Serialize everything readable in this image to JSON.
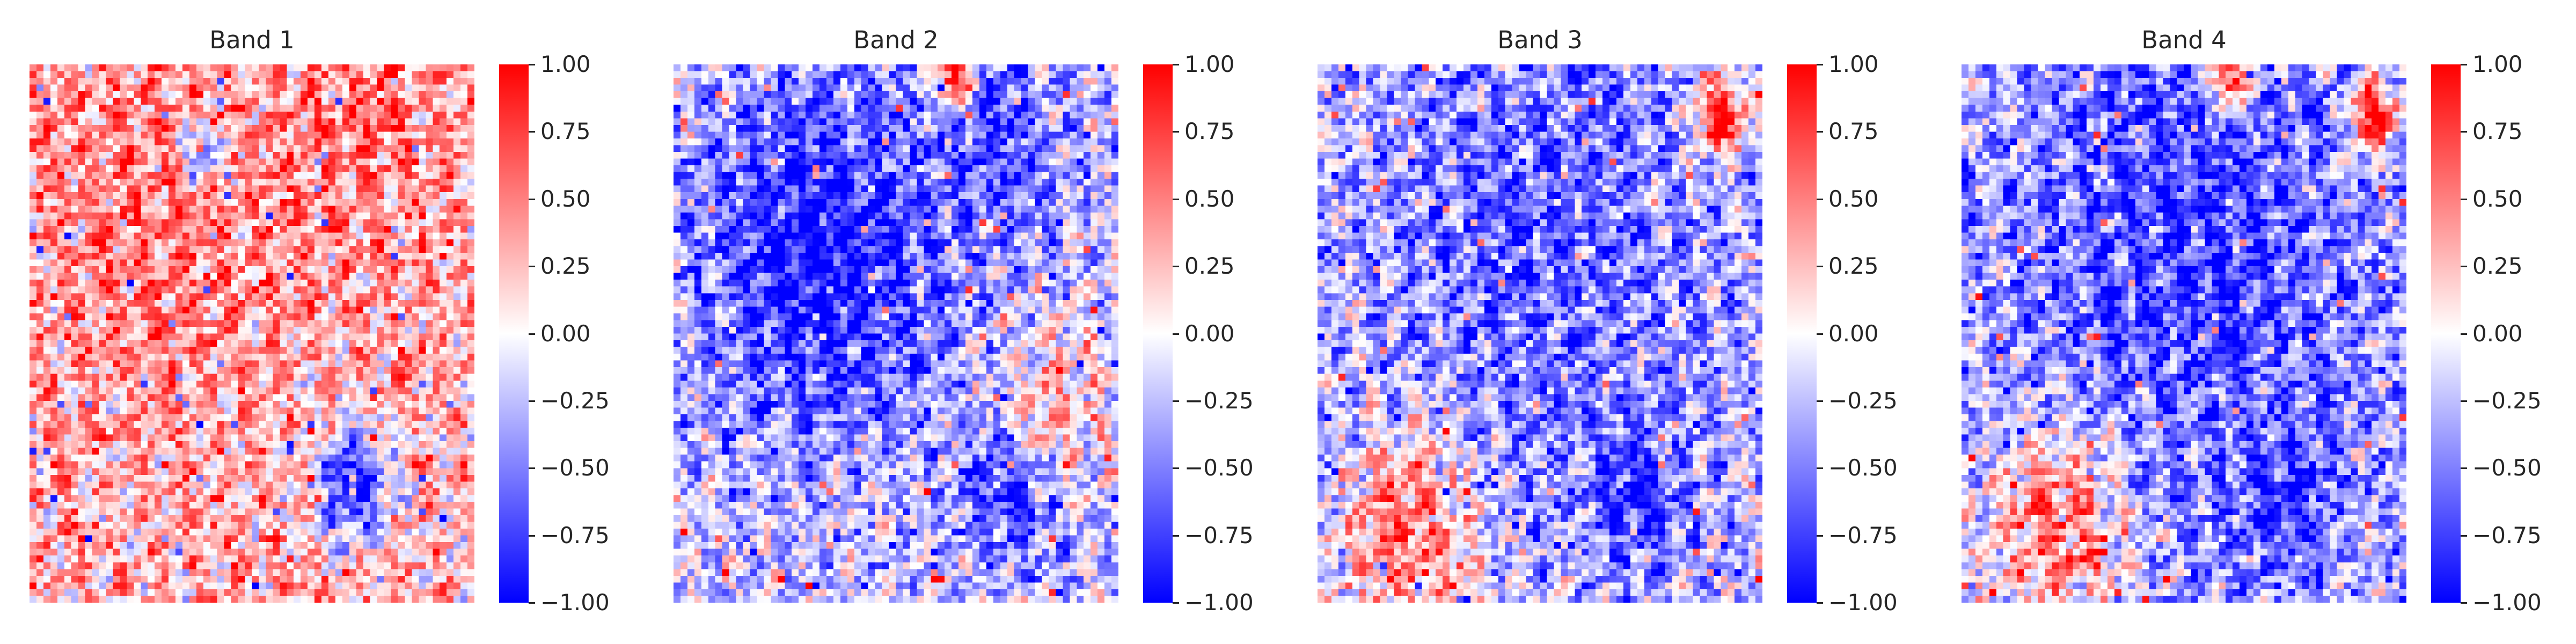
{
  "chart_data": [
    {
      "type": "heatmap",
      "title": "Band 1",
      "colormap": "bwr",
      "vmin": -1.0,
      "vmax": 1.0,
      "colorbar_ticks": [
        1.0,
        0.75,
        0.5,
        0.25,
        0.0,
        -0.25,
        -0.5,
        -0.75,
        -1.0
      ],
      "colorbar_tick_labels": [
        "1.00",
        "0.75",
        "0.50",
        "0.25",
        "0.00",
        "−0.25",
        "−0.50",
        "−0.75",
        "−1.00"
      ],
      "grid_rows": 80,
      "grid_cols": 64,
      "pattern": "mostly light positive (pink) with scattered blue streaks; negative blob near lower-right middle",
      "mean_value": 0.25,
      "features": [
        {
          "cx": 0.3,
          "cy": 0.3,
          "r": 0.2,
          "value": 0.5
        },
        {
          "cx": 0.75,
          "cy": 0.08,
          "r": 0.18,
          "value": 0.5
        },
        {
          "cx": 0.72,
          "cy": 0.78,
          "r": 0.06,
          "value": -0.9
        },
        {
          "cx": 0.38,
          "cy": 0.16,
          "r": 0.03,
          "value": -0.6
        }
      ]
    },
    {
      "type": "heatmap",
      "title": "Band 2",
      "colormap": "bwr",
      "vmin": -1.0,
      "vmax": 1.0,
      "colorbar_ticks": [
        1.0,
        0.75,
        0.5,
        0.25,
        0.0,
        -0.25,
        -0.5,
        -0.75,
        -1.0
      ],
      "colorbar_tick_labels": [
        "1.00",
        "0.75",
        "0.50",
        "0.25",
        "0.00",
        "−0.25",
        "−0.50",
        "−0.75",
        "−1.00"
      ],
      "grid_rows": 80,
      "grid_cols": 64,
      "pattern": "large strong negative (blue) region upper-left-center, mixed elsewhere with red ripples",
      "mean_value": -0.15,
      "features": [
        {
          "cx": 0.32,
          "cy": 0.35,
          "r": 0.2,
          "value": -1.0
        },
        {
          "cx": 0.7,
          "cy": 0.12,
          "r": 0.12,
          "value": -0.7
        },
        {
          "cx": 0.75,
          "cy": 0.78,
          "r": 0.08,
          "value": -0.9
        },
        {
          "cx": 0.62,
          "cy": 0.02,
          "r": 0.03,
          "value": 1.0
        },
        {
          "cx": 0.85,
          "cy": 0.62,
          "r": 0.08,
          "value": 0.3
        }
      ]
    },
    {
      "type": "heatmap",
      "title": "Band 3",
      "colormap": "bwr",
      "vmin": -1.0,
      "vmax": 1.0,
      "colorbar_ticks": [
        1.0,
        0.75,
        0.5,
        0.25,
        0.0,
        -0.25,
        -0.5,
        -0.75,
        -1.0
      ],
      "colorbar_tick_labels": [
        "1.00",
        "0.75",
        "0.50",
        "0.25",
        "0.00",
        "−0.25",
        "−0.50",
        "−0.75",
        "−1.00"
      ],
      "grid_rows": 80,
      "grid_cols": 64,
      "pattern": "moderate negative (blue) over upper half, diagonal red streaks lower-left, blue blob lower-right",
      "mean_value": -0.2,
      "features": [
        {
          "cx": 0.5,
          "cy": 0.3,
          "r": 0.3,
          "value": -0.6
        },
        {
          "cx": 0.7,
          "cy": 0.8,
          "r": 0.07,
          "value": -0.9
        },
        {
          "cx": 0.9,
          "cy": 0.09,
          "r": 0.04,
          "value": 1.0
        },
        {
          "cx": 0.2,
          "cy": 0.85,
          "r": 0.1,
          "value": 0.6
        }
      ]
    },
    {
      "type": "heatmap",
      "title": "Band 4",
      "colormap": "bwr",
      "vmin": -1.0,
      "vmax": 1.0,
      "colorbar_ticks": [
        1.0,
        0.75,
        0.5,
        0.25,
        0.0,
        -0.25,
        -0.5,
        -0.75,
        -1.0
      ],
      "colorbar_tick_labels": [
        "1.00",
        "0.75",
        "0.50",
        "0.25",
        "0.00",
        "−0.25",
        "−0.50",
        "−0.75",
        "−1.00"
      ],
      "grid_rows": 80,
      "grid_cols": 64,
      "pattern": "similar to Band 3 with stronger blue; diagonal red streaks lower-left, red spots upper-right",
      "mean_value": -0.25,
      "features": [
        {
          "cx": 0.5,
          "cy": 0.32,
          "r": 0.3,
          "value": -0.75
        },
        {
          "cx": 0.72,
          "cy": 0.8,
          "r": 0.07,
          "value": -0.9
        },
        {
          "cx": 0.92,
          "cy": 0.09,
          "r": 0.04,
          "value": 1.0
        },
        {
          "cx": 0.6,
          "cy": 0.02,
          "r": 0.03,
          "value": 1.0
        },
        {
          "cx": 0.2,
          "cy": 0.85,
          "r": 0.1,
          "value": 0.6
        }
      ]
    }
  ]
}
